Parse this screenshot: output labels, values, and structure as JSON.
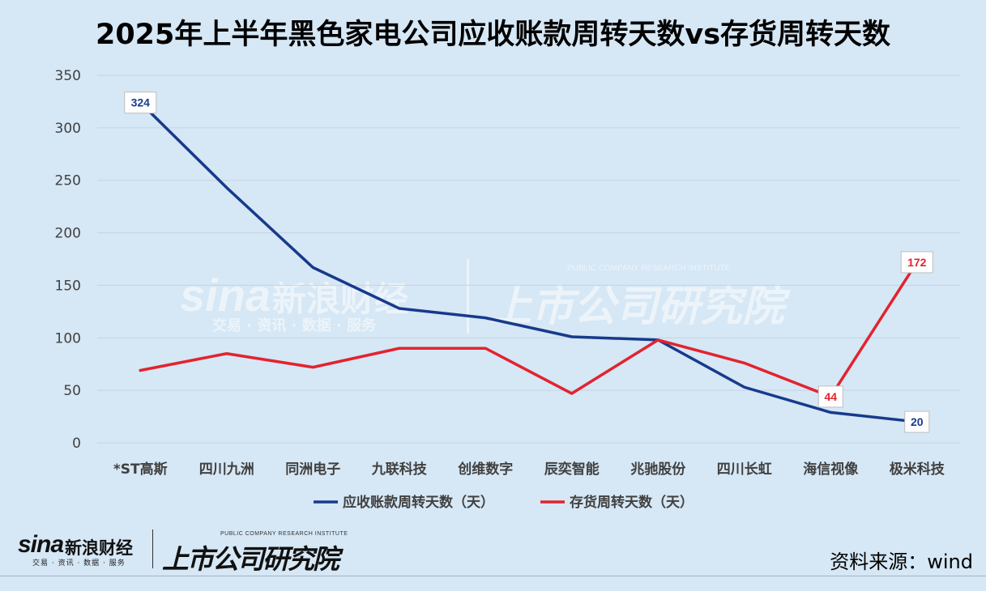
{
  "title": "2025年上半年黑色家电公司应收账款周转天数vs存货周转天数",
  "source": "资料来源：wind",
  "watermark": {
    "sina_logo": "sina",
    "sina_cn": "新浪财经",
    "sina_sub": "交易 · 资讯 · 数据 · 服务",
    "institute_cn": "上市公司研究院",
    "institute_en": "PUBLIC COMPANY RESEARCH INSTITUTE"
  },
  "colors": {
    "background": "#d6e7f5",
    "receivable": "#173a8c",
    "inventory": "#e2232f",
    "grid": "#c3d3e2"
  },
  "chart_data": {
    "type": "line",
    "categories": [
      "*ST高斯",
      "四川九洲",
      "同洲电子",
      "九联科技",
      "创维数字",
      "辰奕智能",
      "兆驰股份",
      "四川长虹",
      "海信视像",
      "极米科技"
    ],
    "series": [
      {
        "name": "应收账款周转天数（天）",
        "values": [
          324,
          243,
          167,
          128,
          119,
          101,
          98,
          53,
          29,
          20
        ],
        "labels": [
          {
            "index": 0,
            "text": "324"
          },
          {
            "index": 9,
            "text": "20"
          }
        ]
      },
      {
        "name": "存货周转天数（天）",
        "values": [
          69,
          85,
          72,
          90,
          90,
          47,
          98,
          76,
          44,
          172
        ],
        "labels": [
          {
            "index": 8,
            "text": "44"
          },
          {
            "index": 9,
            "text": "172"
          }
        ]
      }
    ],
    "ylim": [
      0,
      350
    ],
    "yticks": [
      0,
      50,
      100,
      150,
      200,
      250,
      300,
      350
    ],
    "grid": true,
    "legend": "bottom"
  }
}
